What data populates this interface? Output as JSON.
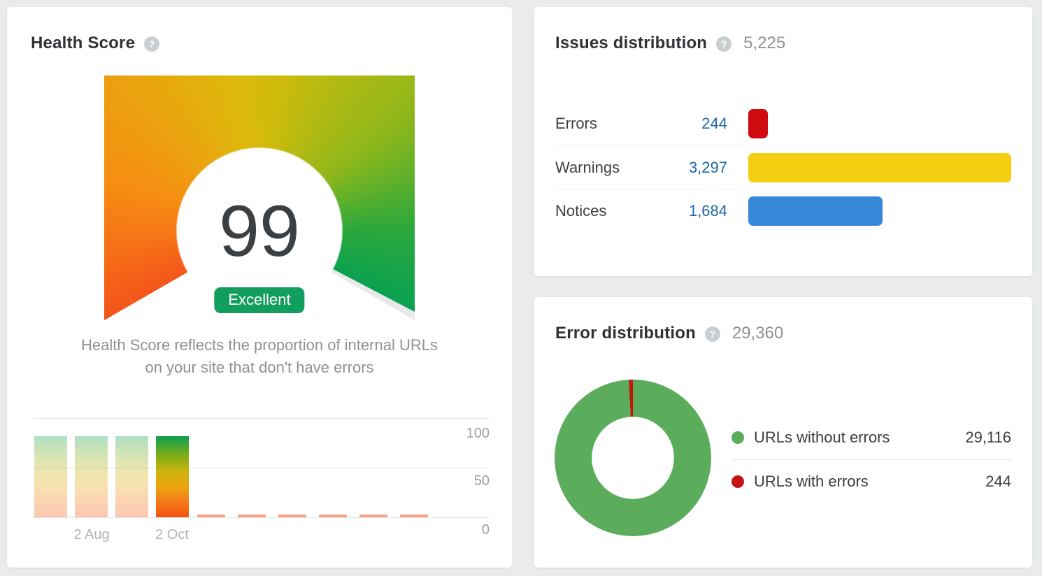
{
  "page": {
    "background": "#e9ebed"
  },
  "icons": {
    "help": "?"
  },
  "health_score": {
    "title": "Health Score",
    "score": "99",
    "rating_label": "Excellent",
    "description_line1": "Health Score reflects the proportion of internal URLs",
    "description_line2": "on your site that don't have errors"
  },
  "issues_distribution": {
    "title": "Issues distribution",
    "total": "5,225",
    "rows": [
      {
        "label": "Errors",
        "count": "244",
        "color": "#d00b0f"
      },
      {
        "label": "Warnings",
        "count": "3,297",
        "color": "#f5ce12"
      },
      {
        "label": "Notices",
        "count": "1,684",
        "color": "#3787d8"
      }
    ]
  },
  "error_distribution": {
    "title": "Error distribution",
    "total": "29,360",
    "legend": [
      {
        "label": "URLs without errors",
        "value": "29,116",
        "color": "#5bad5b"
      },
      {
        "label": "URLs with errors",
        "value": "244",
        "color": "#c41414"
      }
    ]
  },
  "chart_data": [
    {
      "id": "health_score_gauge",
      "type": "gauge",
      "title": "Health Score",
      "value": 99,
      "max": 100,
      "rating": "Excellent",
      "arc_sweep_deg": 240,
      "colors": {
        "start": "#f4551b",
        "mid": "#dcba0c",
        "end": "#0ba151",
        "remainder": "#e8e9ea"
      }
    },
    {
      "id": "health_score_trend",
      "type": "bar",
      "title": "Health Score history",
      "bars": [
        {
          "value": 99,
          "highlighted": false
        },
        {
          "value": 99,
          "highlighted": false
        },
        {
          "value": 99,
          "highlighted": false
        },
        {
          "value": 99,
          "highlighted": true
        }
      ],
      "placeholder_dashes": 6,
      "x_tick_labels": [
        {
          "label": "2 Aug",
          "under_bar": 2
        },
        {
          "label": "2 Oct",
          "under_bar": 4
        }
      ],
      "yticks": [
        "100",
        "50",
        "0"
      ],
      "ylim": [
        0,
        120
      ],
      "grid": true
    },
    {
      "id": "issues_distribution",
      "type": "bar",
      "orientation": "horizontal",
      "categories": [
        "Errors",
        "Warnings",
        "Notices"
      ],
      "values": [
        244,
        3297,
        1684
      ],
      "total": 5225,
      "colors": [
        "#d00b0f",
        "#f5ce12",
        "#3787d8"
      ]
    },
    {
      "id": "error_distribution",
      "type": "pie",
      "donut": true,
      "labels": [
        "URLs without errors",
        "URLs with errors"
      ],
      "values": [
        29116,
        244
      ],
      "total": 29360,
      "colors": [
        "#5bad5b",
        "#c41414"
      ],
      "legend_position": "right"
    }
  ]
}
